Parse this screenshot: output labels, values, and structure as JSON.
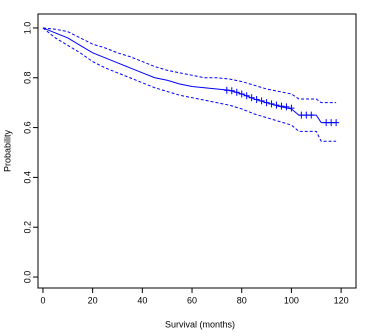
{
  "chart_data": {
    "type": "line",
    "x_label": "Survival (months)",
    "y_label": "Probability",
    "x": [
      0,
      5,
      10,
      15,
      20,
      25,
      30,
      35,
      40,
      45,
      50,
      55,
      60,
      65,
      70,
      75,
      80,
      85,
      90,
      95,
      100,
      103,
      105,
      110,
      112,
      118
    ],
    "series": [
      {
        "color": "#0000ff",
        "dashed": false,
        "values": [
          1.0,
          0.98,
          0.96,
          0.93,
          0.9,
          0.88,
          0.86,
          0.84,
          0.82,
          0.8,
          0.79,
          0.775,
          0.765,
          0.76,
          0.755,
          0.75,
          0.735,
          0.715,
          0.7,
          0.685,
          0.675,
          0.65,
          0.65,
          0.65,
          0.62,
          0.62
        ]
      },
      {
        "color": "#0000ff",
        "dashed": true,
        "values": [
          1.0,
          0.96,
          0.93,
          0.9,
          0.865,
          0.84,
          0.82,
          0.8,
          0.78,
          0.76,
          0.745,
          0.73,
          0.72,
          0.71,
          0.7,
          0.69,
          0.675,
          0.655,
          0.64,
          0.625,
          0.61,
          0.585,
          0.585,
          0.585,
          0.545,
          0.545
        ]
      },
      {
        "color": "#0000ff",
        "dashed": true,
        "values": [
          1.0,
          0.995,
          0.985,
          0.96,
          0.935,
          0.92,
          0.9,
          0.885,
          0.865,
          0.845,
          0.83,
          0.82,
          0.81,
          0.8,
          0.8,
          0.795,
          0.785,
          0.77,
          0.755,
          0.745,
          0.735,
          0.715,
          0.715,
          0.715,
          0.7,
          0.7
        ]
      }
    ],
    "censor_marks": {
      "color": "#0000ff",
      "x": [
        74,
        76,
        78,
        80,
        82,
        84,
        86,
        88,
        90,
        92,
        94,
        96,
        98,
        100,
        104,
        106,
        108,
        114,
        116,
        118
      ],
      "values": [
        0.75,
        0.748,
        0.742,
        0.735,
        0.728,
        0.72,
        0.713,
        0.707,
        0.7,
        0.695,
        0.69,
        0.686,
        0.683,
        0.678,
        0.65,
        0.65,
        0.65,
        0.62,
        0.62,
        0.62
      ]
    },
    "xlim": [
      -2,
      126
    ],
    "ylim": [
      -0.044,
      1.056
    ],
    "xticks": [
      0,
      20,
      40,
      60,
      80,
      100,
      120
    ],
    "yticks": [
      {
        "value": 0,
        "label": "0.0"
      },
      0.2,
      0.4,
      0.6,
      0.8,
      {
        "value": 1,
        "label": "1.0"
      }
    ]
  }
}
